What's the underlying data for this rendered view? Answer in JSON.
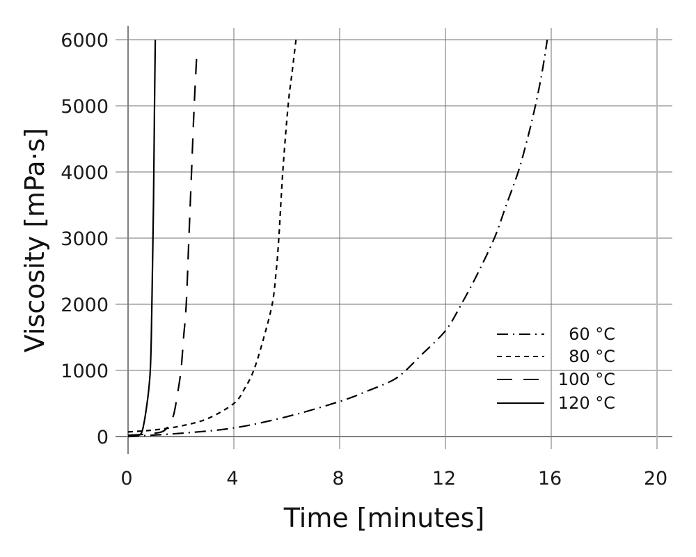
{
  "chart_data": {
    "type": "line",
    "title": "",
    "xlabel": "Time [minutes]",
    "ylabel": "Viscosity [mPa·s]",
    "xlim": [
      0,
      20.5
    ],
    "ylim": [
      -200,
      6150
    ],
    "x_ticks": [
      0,
      4,
      8,
      12,
      16,
      20
    ],
    "y_ticks": [
      0,
      1000,
      2000,
      3000,
      4000,
      5000,
      6000
    ],
    "grid": true,
    "legend_position": "lower right (inside plot)",
    "series": [
      {
        "name": "60 °C",
        "style": "dash-dot",
        "x": [
          0,
          2,
          4,
          6,
          8,
          9,
          10,
          10.5,
          11,
          12,
          12.6,
          13.2,
          13.85,
          14.3,
          14.75,
          15.1,
          15.4,
          15.65,
          15.85
        ],
        "y": [
          0,
          50,
          130,
          300,
          530,
          680,
          850,
          1000,
          1200,
          1600,
          2000,
          2450,
          3000,
          3500,
          4000,
          4500,
          5000,
          5500,
          6000
        ]
      },
      {
        "name": "80 °C",
        "style": "dashed",
        "x": [
          0,
          1,
          2,
          3,
          4,
          4.4,
          4.75,
          5.1,
          5.45,
          5.6,
          5.7,
          5.85,
          6.05,
          6.2,
          6.35
        ],
        "y": [
          70,
          100,
          160,
          270,
          500,
          720,
          1000,
          1450,
          2000,
          2500,
          3000,
          4000,
          5000,
          5500,
          6000
        ]
      },
      {
        "name": "100 °C",
        "style": "long-dash",
        "x": [
          0,
          0.5,
          1.0,
          1.4,
          1.7,
          1.85,
          2.0,
          2.1,
          2.2,
          2.3,
          2.4,
          2.5,
          2.6
        ],
        "y": [
          20,
          30,
          50,
          100,
          300,
          600,
          1000,
          1500,
          2000,
          3000,
          4000,
          5000,
          5800
        ]
      },
      {
        "name": "120 °C",
        "style": "solid",
        "x": [
          0,
          0.3,
          0.5,
          0.6,
          0.7,
          0.78,
          0.84,
          0.88,
          0.92,
          0.96,
          1.0,
          1.03
        ],
        "y": [
          0,
          10,
          50,
          200,
          450,
          700,
          1000,
          1500,
          2500,
          3500,
          5000,
          6000
        ]
      }
    ]
  },
  "axes": {
    "x_title": "Time [minutes]",
    "y_title": "Viscosity [mPa·s]",
    "x_tick_labels": [
      "0",
      "4",
      "8",
      "12",
      "16",
      "20"
    ],
    "y_tick_labels": [
      "0",
      "1000",
      "2000",
      "3000",
      "4000",
      "5000",
      "6000"
    ]
  },
  "legend": {
    "items": [
      {
        "label": "60 °C",
        "style": "dash-dot"
      },
      {
        "label": "80 °C",
        "style": "dashed"
      },
      {
        "label": "100 °C",
        "style": "long-dash"
      },
      {
        "label": "120 °C",
        "style": "solid"
      }
    ]
  },
  "colors": {
    "line": "#000000",
    "grid": "#707070",
    "axis": "#808080",
    "text": "#1a1a1a"
  }
}
